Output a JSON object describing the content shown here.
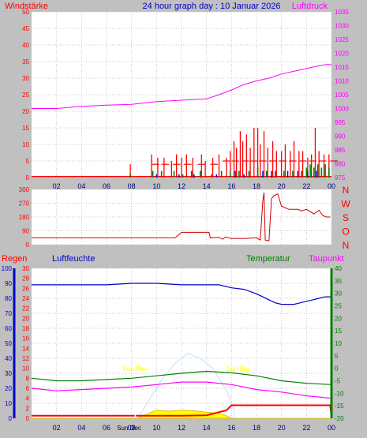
{
  "page_title": "24 hour graph day : 10 Januar 2026",
  "colors": {
    "bg": "#c0c0c0",
    "plot_bg": "#ffffff",
    "wind": "#ff0000",
    "gust_green": "#008000",
    "gust_blue": "#0000ff",
    "pressure": "#ff00ff",
    "direction": "#cc0000",
    "humidity": "#0000cc",
    "temperature": "#008000",
    "dewpoint": "#ff00ff",
    "rain": "#ff0000",
    "sun": "#ffff00",
    "solar": "#bfdfff",
    "grid": "#c8c8c8"
  },
  "x_ticks": [
    "02",
    "04",
    "06",
    "08",
    "10",
    "12",
    "14",
    "16",
    "18",
    "20",
    "22",
    "00"
  ],
  "chart_data": [
    {
      "type": "line",
      "name": "wind-pressure",
      "title": "24 hour graph day : 10 Januar 2026",
      "left_label": "Windstärke",
      "right_label": "Luftdruck",
      "left_ticks": [
        "0",
        "5",
        "10",
        "15",
        "20",
        "25",
        "30",
        "35",
        "40",
        "45",
        "50"
      ],
      "right_ticks": [
        "975",
        "980",
        "985",
        "990",
        "995",
        "1000",
        "1005",
        "1010",
        "1015",
        "1020",
        "1025",
        "1030",
        "1035"
      ],
      "ylim_left": [
        0,
        50
      ],
      "ylim_right": [
        975,
        1035
      ],
      "pressure": {
        "x": [
          0,
          2,
          4,
          6,
          8,
          10,
          12,
          14,
          15,
          16,
          17,
          18,
          19,
          20,
          21,
          22,
          23,
          23.7,
          24
        ],
        "y": [
          1000,
          1000,
          1000.8,
          1001.2,
          1001.5,
          1002.5,
          1003,
          1003.5,
          1005,
          1006.7,
          1008.7,
          1010,
          1011,
          1012.5,
          1013.5,
          1014.5,
          1015.5,
          1016,
          1015.8
        ]
      },
      "wind_events": [
        [
          7.9,
          4
        ],
        [
          9.6,
          7
        ],
        [
          10.1,
          6
        ],
        [
          10.6,
          6
        ],
        [
          11.2,
          5
        ],
        [
          11.6,
          7
        ],
        [
          12.0,
          6
        ],
        [
          12.4,
          7
        ],
        [
          12.9,
          6
        ],
        [
          13.6,
          7
        ],
        [
          13.9,
          5
        ],
        [
          14.5,
          6
        ],
        [
          15.0,
          7
        ],
        [
          15.6,
          6
        ],
        [
          15.9,
          8
        ],
        [
          16.2,
          11
        ],
        [
          16.4,
          9
        ],
        [
          16.7,
          14
        ],
        [
          16.9,
          11
        ],
        [
          17.2,
          13
        ],
        [
          17.5,
          9
        ],
        [
          17.8,
          15
        ],
        [
          18.1,
          15
        ],
        [
          18.3,
          10
        ],
        [
          18.6,
          14
        ],
        [
          18.9,
          9
        ],
        [
          19.3,
          11
        ],
        [
          19.6,
          8
        ],
        [
          20.0,
          8
        ],
        [
          20.3,
          10
        ],
        [
          20.7,
          8
        ],
        [
          21.0,
          11
        ],
        [
          21.4,
          8
        ],
        [
          21.7,
          8
        ],
        [
          22.1,
          6
        ],
        [
          22.4,
          7
        ],
        [
          22.7,
          15
        ],
        [
          23.0,
          8
        ],
        [
          23.4,
          7
        ],
        [
          23.8,
          7
        ]
      ],
      "wind_base": [
        [
          9.6,
          4
        ],
        [
          10.4,
          4
        ],
        [
          11.3,
          4
        ],
        [
          12.2,
          4
        ],
        [
          13.3,
          4
        ],
        [
          14.3,
          4
        ],
        [
          15.3,
          5
        ],
        [
          16.0,
          5
        ],
        [
          16.8,
          5
        ],
        [
          17.5,
          5
        ],
        [
          18.2,
          5
        ],
        [
          19.0,
          5
        ],
        [
          19.8,
          5
        ],
        [
          20.6,
          5
        ],
        [
          21.4,
          5
        ],
        [
          22.2,
          5
        ],
        [
          23.0,
          5
        ],
        [
          23.9,
          5
        ]
      ],
      "gust_green": [
        [
          7.9,
          1
        ],
        [
          9.7,
          2
        ],
        [
          10.4,
          2
        ],
        [
          11.4,
          2
        ],
        [
          12.1,
          1
        ],
        [
          12.8,
          2
        ],
        [
          13.5,
          2
        ],
        [
          14.4,
          1
        ],
        [
          15.2,
          2
        ],
        [
          15.9,
          2
        ],
        [
          16.6,
          2
        ],
        [
          17.4,
          2
        ],
        [
          18.1,
          3
        ],
        [
          18.8,
          2
        ],
        [
          19.5,
          2
        ],
        [
          20.2,
          2
        ],
        [
          20.9,
          2
        ],
        [
          21.6,
          2
        ],
        [
          22.0,
          3
        ],
        [
          22.3,
          4
        ],
        [
          22.6,
          3
        ],
        [
          22.9,
          4
        ],
        [
          23.2,
          3
        ],
        [
          23.5,
          4
        ],
        [
          23.8,
          3
        ]
      ],
      "gust_blue": [
        [
          10.0,
          1
        ],
        [
          11.8,
          1
        ],
        [
          13.0,
          1
        ],
        [
          14.8,
          1
        ],
        [
          16.3,
          2
        ],
        [
          17.0,
          1
        ],
        [
          18.5,
          2
        ],
        [
          19.2,
          2
        ],
        [
          20.5,
          2
        ],
        [
          21.3,
          2
        ],
        [
          22.1,
          2
        ],
        [
          22.8,
          2
        ]
      ]
    },
    {
      "type": "line",
      "name": "wind-direction",
      "left_ticks": [
        "0",
        "90",
        "180",
        "270",
        "360"
      ],
      "right_ticks": [
        "N",
        "W",
        "S",
        "O",
        "N"
      ],
      "ylim": [
        0,
        360
      ],
      "x": [
        0,
        8,
        11.5,
        12,
        14.2,
        14.3,
        15,
        15.3,
        15.5,
        16,
        17,
        18,
        18.3,
        18.5,
        18.6,
        18.7,
        19,
        19.2,
        19.4,
        19.7,
        20,
        20.3,
        20.6,
        21,
        21.3,
        21.6,
        22,
        22.3,
        22.6,
        23,
        23.3,
        23.6,
        23.9
      ],
      "y": [
        45,
        45,
        45,
        80,
        80,
        45,
        48,
        35,
        50,
        40,
        40,
        45,
        30,
        280,
        340,
        30,
        25,
        300,
        320,
        330,
        250,
        240,
        230,
        230,
        230,
        220,
        230,
        215,
        200,
        225,
        190,
        180,
        180
      ]
    },
    {
      "type": "line",
      "name": "climate",
      "labels": {
        "rain": "Regen",
        "humidity": "Luftfeuchte",
        "temperature": "Temperatur",
        "dewpoint": "Taupunkt"
      },
      "rain_ticks": [
        "0",
        "2",
        "4",
        "6",
        "8",
        "10",
        "12",
        "14",
        "16",
        "18",
        "20",
        "22",
        "24",
        "26",
        "28",
        "30"
      ],
      "humidity_ticks": [
        "0",
        "10",
        "20",
        "30",
        "40",
        "50",
        "60",
        "70",
        "80",
        "90",
        "100"
      ],
      "temp_ticks": [
        "-20",
        "-15",
        "-10",
        "-5",
        "0",
        "5",
        "10",
        "15",
        "20",
        "25",
        "30",
        "35",
        "40"
      ],
      "annotations": [
        "Sun Rise",
        "Sun Set",
        "Sun Dec"
      ],
      "sunrise_x": 8.3,
      "sunset_x": 16.5,
      "humidity": {
        "x": [
          0,
          2,
          4,
          6,
          8,
          9,
          10,
          12,
          14,
          15,
          16,
          17,
          18,
          18.5,
          19,
          19.5,
          20,
          21,
          22,
          22.5,
          23,
          23.5,
          24
        ],
        "y": [
          89,
          89,
          89,
          89,
          90,
          90,
          90,
          89,
          89,
          89,
          87,
          86,
          83,
          81,
          79,
          77,
          76,
          76,
          78,
          79,
          80,
          81,
          81
        ]
      },
      "temperature": {
        "x": [
          0,
          2,
          4,
          6,
          8,
          10,
          12,
          14,
          16,
          18,
          20,
          22,
          24
        ],
        "y": [
          -4,
          -5,
          -5,
          -4.5,
          -4,
          -3,
          -2,
          -1.2,
          -1.8,
          -3,
          -5,
          -6,
          -6.5
        ]
      },
      "dewpoint": {
        "x": [
          0,
          2,
          4,
          6,
          8,
          10,
          12,
          14,
          16,
          18,
          20,
          22,
          24
        ],
        "y": [
          -8,
          -9,
          -8.5,
          -8,
          -7.5,
          -6.5,
          -5.5,
          -5.5,
          -6.5,
          -8.5,
          -9.5,
          -11,
          -12
        ]
      },
      "solar": {
        "x": [
          8.5,
          9.5,
          10.5,
          11.5,
          12.5,
          13.5,
          14.5,
          15.5,
          16.2
        ],
        "y": [
          0,
          4,
          8,
          11,
          13,
          12,
          10,
          6,
          2
        ]
      },
      "rain": {
        "x": [
          0,
          12,
          14,
          15.6,
          16,
          17,
          18,
          20,
          22,
          23.9,
          24
        ],
        "y": [
          0.5,
          0.5,
          0.6,
          1.6,
          2.6,
          2.6,
          2.6,
          2.6,
          2.6,
          2.6,
          0.2
        ]
      },
      "sun": {
        "x": [
          0,
          8.5,
          9,
          9.5,
          10,
          11,
          12,
          13,
          14,
          15,
          15.5,
          16,
          24
        ],
        "y": [
          0,
          0,
          0.6,
          1.1,
          1.6,
          1.4,
          1.6,
          1.5,
          1.2,
          1,
          0.6,
          0,
          0
        ]
      }
    }
  ]
}
